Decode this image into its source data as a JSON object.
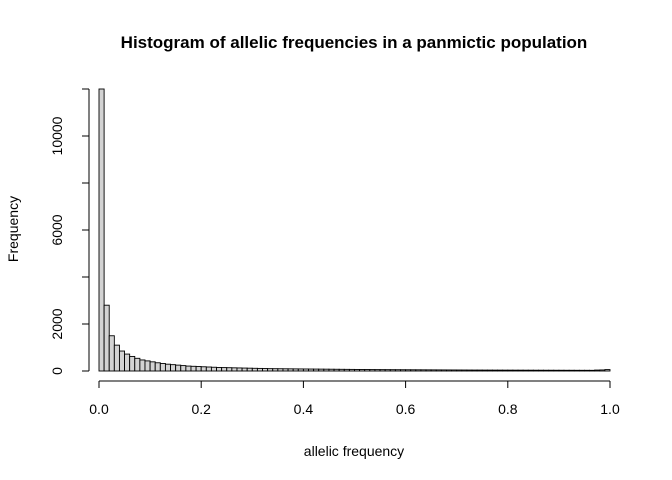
{
  "chart_data": {
    "type": "bar",
    "title": "Histogram of allelic frequencies in a panmictic population",
    "xlabel": "allelic frequency",
    "ylabel": "Frequency",
    "xlim": [
      0,
      1
    ],
    "ylim": [
      0,
      12000
    ],
    "x_ticks": [
      0.0,
      0.2,
      0.4,
      0.6,
      0.8,
      1.0
    ],
    "x_tick_labels": [
      "0.0",
      "0.2",
      "0.4",
      "0.6",
      "0.8",
      "1.0"
    ],
    "y_ticks": [
      0,
      2000,
      6000,
      10000
    ],
    "y_tick_labels": [
      "0",
      "2000",
      "6000",
      "10000"
    ],
    "bin_width": 0.01,
    "bin_start": 0,
    "bar_color": "#d3d3d3",
    "values": [
      12000,
      2800,
      1500,
      1100,
      850,
      720,
      620,
      540,
      470,
      430,
      390,
      350,
      320,
      290,
      270,
      250,
      230,
      210,
      200,
      190,
      180,
      170,
      160,
      150,
      145,
      140,
      135,
      130,
      125,
      120,
      115,
      110,
      105,
      100,
      98,
      96,
      94,
      92,
      90,
      88,
      86,
      84,
      82,
      80,
      78,
      76,
      74,
      72,
      70,
      68,
      66,
      64,
      62,
      60,
      59,
      58,
      57,
      56,
      55,
      54,
      53,
      52,
      51,
      50,
      49,
      48,
      47,
      46,
      45,
      44,
      43,
      42,
      41,
      40,
      40,
      39,
      39,
      38,
      38,
      37,
      37,
      36,
      36,
      35,
      35,
      34,
      34,
      33,
      33,
      32,
      32,
      31,
      31,
      30,
      30,
      30,
      29,
      40,
      45,
      60
    ]
  }
}
